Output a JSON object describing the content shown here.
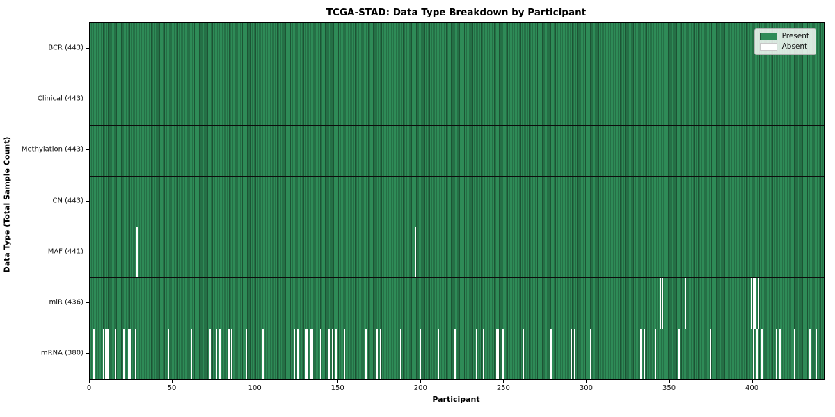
{
  "figure": {
    "title": "TCGA-STAD: Data Type Breakdown by Participant",
    "xlabel": "Participant",
    "ylabel": "Data Type (Total Sample Count)"
  },
  "legend": {
    "items": [
      {
        "label": "Present",
        "color": "#2e8b57",
        "edge": "#1c5434"
      },
      {
        "label": "Absent",
        "color": "#ffffff",
        "edge": "#c8c8c8"
      }
    ]
  },
  "chart_data": {
    "type": "heatmap",
    "title": "TCGA-STAD: Data Type Breakdown by Participant",
    "xlabel": "Participant",
    "ylabel": "Data Type (Total Sample Count)",
    "legend_entries": [
      "Present",
      "Absent"
    ],
    "legend_position": "upper right",
    "n_participants": 443,
    "x_ticks": [
      0,
      50,
      100,
      150,
      200,
      250,
      300,
      350,
      400
    ],
    "xlim": [
      0,
      443
    ],
    "grid": false,
    "colors": {
      "present_fill": "#2e8b57",
      "present_edge": "#1c5434",
      "absent_fill": "#ffffff",
      "row_separator": "#0d0d0d"
    },
    "rows": [
      {
        "label": "BCR (443)",
        "data_type": "BCR",
        "total_sample_count": 443,
        "absent_participants": []
      },
      {
        "label": "Clinical (443)",
        "data_type": "Clinical",
        "total_sample_count": 443,
        "absent_participants": []
      },
      {
        "label": "Methylation (443)",
        "data_type": "Methylation",
        "total_sample_count": 443,
        "absent_participants": []
      },
      {
        "label": "CN (443)",
        "data_type": "CN",
        "total_sample_count": 443,
        "absent_participants": []
      },
      {
        "label": "MAF (441)",
        "data_type": "MAF",
        "total_sample_count": 441,
        "absent_participants": [
          28,
          196
        ]
      },
      {
        "label": "miR (436)",
        "data_type": "miR",
        "total_sample_count": 436,
        "absent_participants": [
          344,
          345,
          359,
          399,
          400,
          401,
          403
        ]
      },
      {
        "label": "mRNA (380)",
        "data_type": "mRNA",
        "total_sample_count": 380,
        "absent_participants": [
          2,
          8,
          9,
          10,
          11,
          15,
          20,
          23,
          24,
          27,
          47,
          61,
          72,
          76,
          78,
          83,
          84,
          85,
          94,
          104,
          123,
          125,
          130,
          131,
          133,
          134,
          139,
          144,
          145,
          146,
          148,
          153,
          166,
          173,
          175,
          187,
          199,
          210,
          220,
          233,
          237,
          245,
          246,
          247,
          249,
          261,
          278,
          290,
          292,
          302,
          332,
          334,
          341,
          355,
          374,
          400,
          402,
          405,
          414,
          416,
          425,
          434,
          438
        ]
      }
    ]
  }
}
